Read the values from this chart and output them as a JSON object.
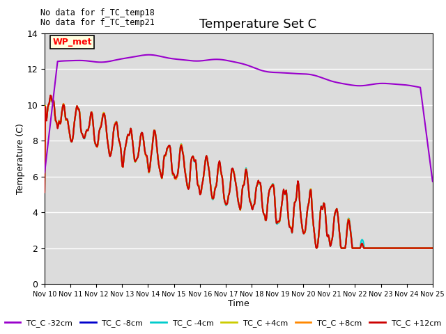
{
  "title": "Temperature Set C",
  "xlabel": "Time",
  "ylabel": "Temperature (C)",
  "ylim": [
    0,
    14
  ],
  "xlim": [
    0,
    15
  ],
  "no_data_text": [
    "No data for f_TC_temp18",
    "No data for f_TC_temp21"
  ],
  "legend_box_label": "WP_met",
  "xtick_labels": [
    "Nov 10",
    "Nov 11",
    "Nov 12",
    "Nov 13",
    "Nov 14",
    "Nov 15",
    "Nov 16",
    "Nov 17",
    "Nov 18",
    "Nov 19",
    "Nov 20",
    "Nov 21",
    "Nov 22",
    "Nov 23",
    "Nov 24",
    "Nov 25"
  ],
  "series_names": [
    "TC_C -32cm",
    "TC_C -8cm",
    "TC_C -4cm",
    "TC_C +4cm",
    "TC_C +8cm",
    "TC_C +12cm"
  ],
  "series_colors": [
    "#9900cc",
    "#0000cc",
    "#00cccc",
    "#cccc00",
    "#ff8800",
    "#cc0000"
  ],
  "series_lw": [
    1.5,
    1.5,
    1.5,
    1.5,
    1.5,
    1.5
  ],
  "background_color": "#dcdcdc",
  "grid_color": "#ffffff",
  "figsize": [
    6.4,
    4.8
  ],
  "dpi": 100
}
